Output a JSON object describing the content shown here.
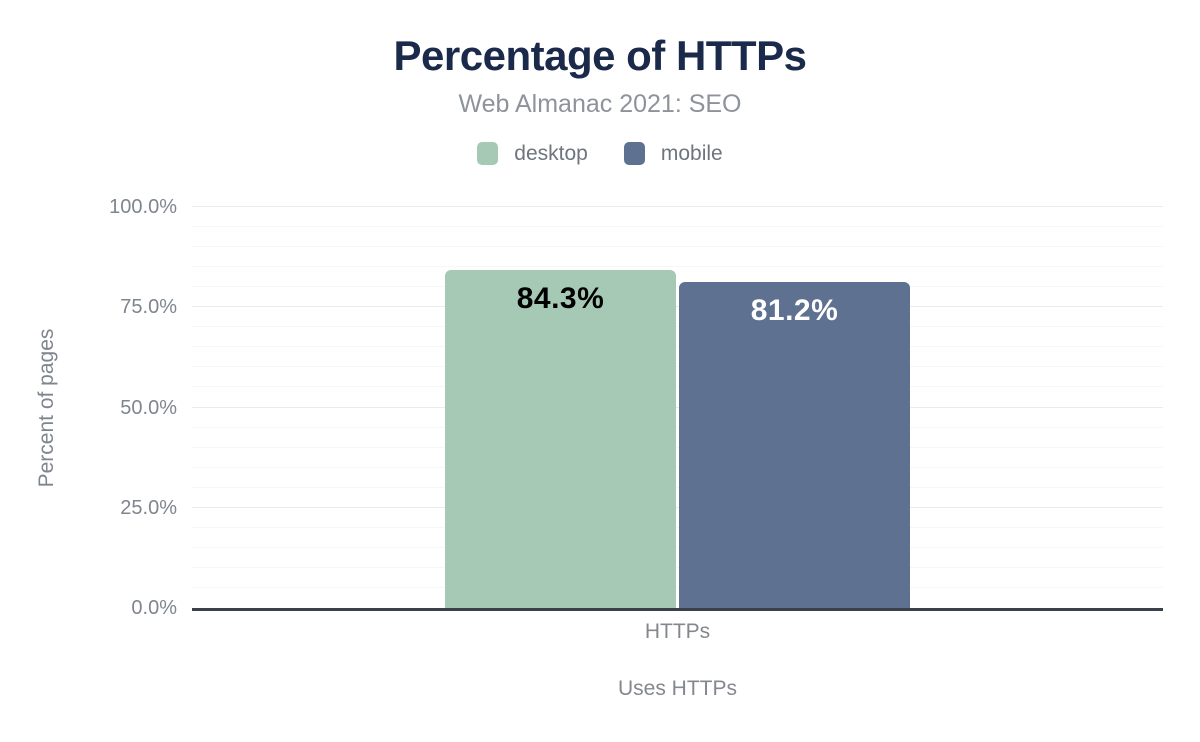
{
  "chart_data": {
    "type": "bar",
    "title": "Percentage of HTTPs",
    "subtitle": "Web Almanac 2021: SEO",
    "categories": [
      "HTTPs"
    ],
    "series": [
      {
        "name": "desktop",
        "values": [
          84.3
        ],
        "labels": [
          "84.3%"
        ],
        "color": "#a6c9b5",
        "label_color": "#000000"
      },
      {
        "name": "mobile",
        "values": [
          81.2
        ],
        "labels": [
          "81.2%"
        ],
        "color": "#5e7191",
        "label_color": "#ffffff"
      }
    ],
    "xlabel": "Uses HTTPs",
    "ylabel": "Percent of pages",
    "ylim": [
      0,
      100
    ],
    "yticks": [
      {
        "value": 0,
        "label": "0.0%"
      },
      {
        "value": 25,
        "label": "25.0%"
      },
      {
        "value": 50,
        "label": "50.0%"
      },
      {
        "value": 75,
        "label": "75.0%"
      },
      {
        "value": 100,
        "label": "100.0%"
      }
    ],
    "grid": {
      "minor_step": 5,
      "major_step": 25
    },
    "legend_position": "top",
    "colors": {
      "title": "#1b2a4a",
      "subtitle": "#8e939b",
      "axis_text": "#7f858e",
      "legend_text": "#6e757e",
      "baseline": "#39424c",
      "grid_major": "#e9ebee",
      "grid_minor": "#f5f6f8",
      "background": "#ffffff"
    }
  }
}
